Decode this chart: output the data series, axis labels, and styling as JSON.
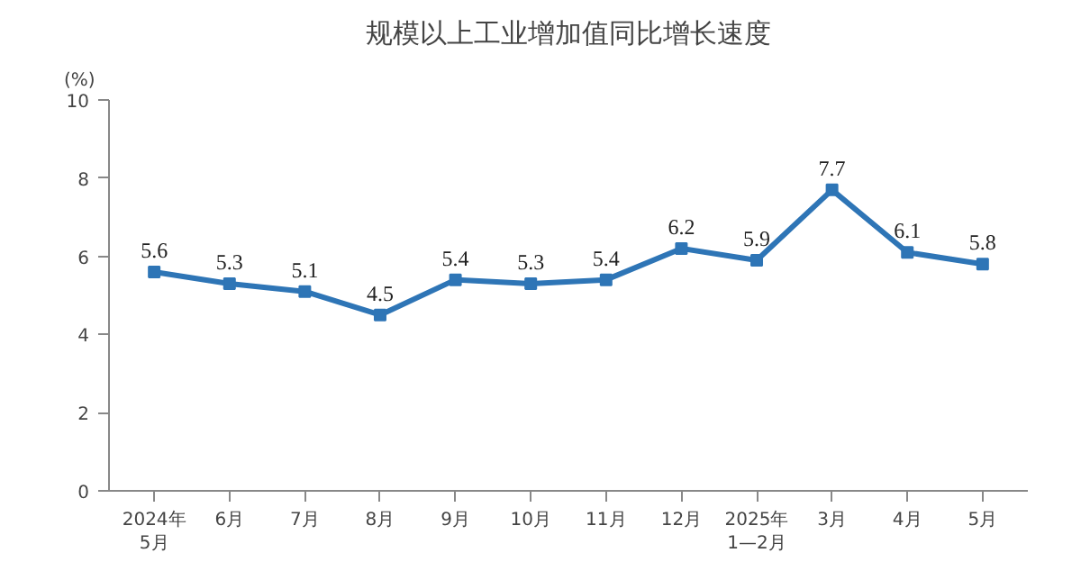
{
  "chart_data": {
    "type": "line",
    "title": "规模以上工业增加值同比增长速度",
    "ylabel": "(%)",
    "categories": [
      "2024年\n5月",
      "6月",
      "7月",
      "8月",
      "9月",
      "10月",
      "11月",
      "12月",
      "2025年\n1—2月",
      "3月",
      "4月",
      "5月"
    ],
    "series": [
      {
        "color": "#2e75b6",
        "values": [
          5.6,
          5.3,
          5.1,
          4.5,
          5.4,
          5.3,
          5.4,
          6.2,
          5.9,
          7.7,
          6.1,
          5.8
        ]
      }
    ],
    "ylim": [
      0,
      10
    ],
    "yticks": [
      0,
      2,
      4,
      6,
      8,
      10
    ],
    "marker": "square",
    "data_labels": true,
    "grid": false
  }
}
